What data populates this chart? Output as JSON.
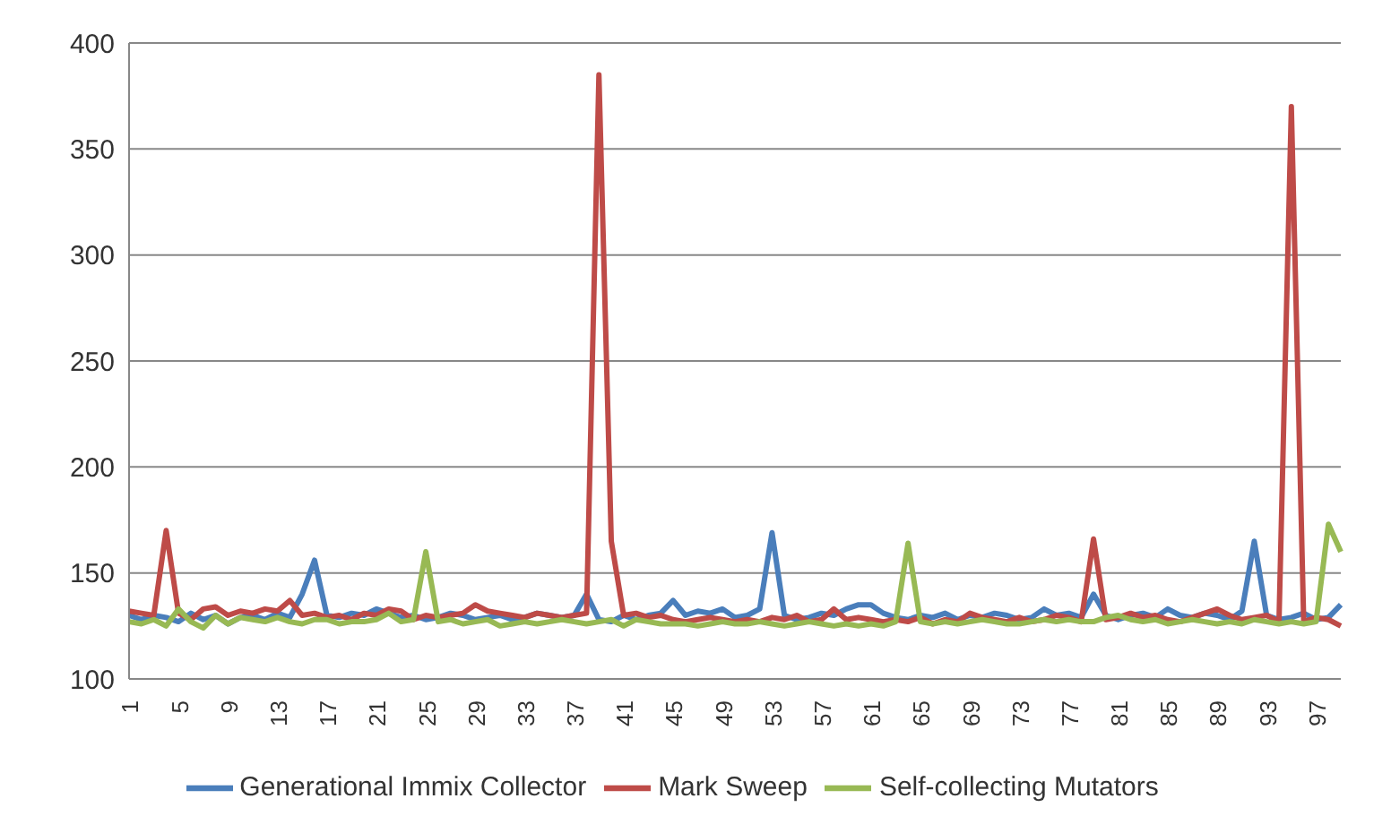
{
  "chart_data": {
    "type": "line",
    "categories": [
      "1",
      null,
      null,
      null,
      "5",
      null,
      null,
      null,
      "9",
      null,
      null,
      null,
      "13",
      null,
      null,
      null,
      "17",
      null,
      null,
      null,
      "21",
      null,
      null,
      null,
      "25",
      null,
      null,
      null,
      "29",
      null,
      null,
      null,
      "33",
      null,
      null,
      null,
      "37",
      null,
      null,
      null,
      "41",
      null,
      null,
      null,
      "45",
      null,
      null,
      null,
      "49",
      null,
      null,
      null,
      "53",
      null,
      null,
      null,
      "57",
      null,
      null,
      null,
      "61",
      null,
      null,
      null,
      "65",
      null,
      null,
      null,
      "69",
      null,
      null,
      null,
      "73",
      null,
      null,
      null,
      "77",
      null,
      null,
      null,
      "81",
      null,
      null,
      null,
      "85",
      null,
      null,
      null,
      "89",
      null,
      null,
      null,
      "93",
      null,
      null,
      null,
      "97",
      null,
      null
    ],
    "series": [
      {
        "name": "Generational Immix Collector",
        "color": "#4a7ebb",
        "values": [
          130,
          128,
          130,
          129,
          127,
          131,
          128,
          130,
          126,
          129,
          130,
          128,
          131,
          129,
          140,
          156,
          130,
          129,
          131,
          130,
          133,
          131,
          129,
          130,
          128,
          129,
          131,
          130,
          128,
          129,
          130,
          128,
          129,
          131,
          130,
          129,
          130,
          140,
          128,
          127,
          130,
          128,
          130,
          131,
          137,
          130,
          132,
          131,
          133,
          129,
          130,
          133,
          169,
          130,
          128,
          129,
          131,
          130,
          133,
          135,
          135,
          131,
          129,
          128,
          130,
          129,
          131,
          128,
          130,
          129,
          131,
          130,
          128,
          129,
          133,
          130,
          131,
          129,
          140,
          130,
          128,
          130,
          131,
          129,
          133,
          130,
          129,
          131,
          130,
          128,
          132,
          165,
          130,
          128,
          129,
          131,
          128,
          129,
          135
        ]
      },
      {
        "name": "Mark Sweep",
        "color": "#be4b48",
        "values": [
          132,
          131,
          130,
          170,
          131,
          128,
          133,
          134,
          130,
          132,
          131,
          133,
          132,
          137,
          130,
          131,
          129,
          130,
          128,
          131,
          130,
          133,
          132,
          128,
          130,
          129,
          130,
          131,
          135,
          132,
          131,
          130,
          129,
          131,
          130,
          129,
          130,
          131,
          385,
          165,
          130,
          131,
          129,
          130,
          128,
          127,
          128,
          129,
          128,
          127,
          128,
          127,
          129,
          128,
          130,
          127,
          128,
          133,
          128,
          129,
          128,
          127,
          128,
          127,
          129,
          126,
          128,
          127,
          131,
          129,
          128,
          127,
          129,
          127,
          128,
          130,
          129,
          127,
          166,
          128,
          129,
          131,
          129,
          130,
          128,
          127,
          129,
          131,
          133,
          130,
          128,
          129,
          130,
          127,
          370,
          127,
          129,
          128,
          125
        ]
      },
      {
        "name": "Self-collecting Mutators",
        "color": "#98b954",
        "values": [
          127,
          126,
          128,
          125,
          133,
          127,
          124,
          130,
          126,
          129,
          128,
          127,
          129,
          127,
          126,
          128,
          128,
          126,
          127,
          127,
          128,
          131,
          127,
          128,
          160,
          127,
          128,
          126,
          127,
          128,
          125,
          126,
          127,
          126,
          127,
          128,
          127,
          126,
          127,
          128,
          125,
          128,
          127,
          126,
          126,
          126,
          125,
          126,
          127,
          126,
          126,
          127,
          126,
          125,
          126,
          127,
          126,
          125,
          126,
          125,
          126,
          125,
          127,
          164,
          127,
          126,
          127,
          126,
          127,
          128,
          127,
          126,
          126,
          127,
          128,
          127,
          128,
          127,
          127,
          129,
          130,
          128,
          127,
          128,
          126,
          127,
          128,
          127,
          126,
          127,
          126,
          128,
          127,
          126,
          127,
          126,
          127,
          173,
          160
        ]
      }
    ],
    "ylim": [
      100,
      400
    ],
    "yticks": [
      100,
      150,
      200,
      250,
      300,
      350,
      400
    ],
    "grid": "y",
    "legend": "bottom",
    "marker": "none",
    "line_style": "solid"
  }
}
